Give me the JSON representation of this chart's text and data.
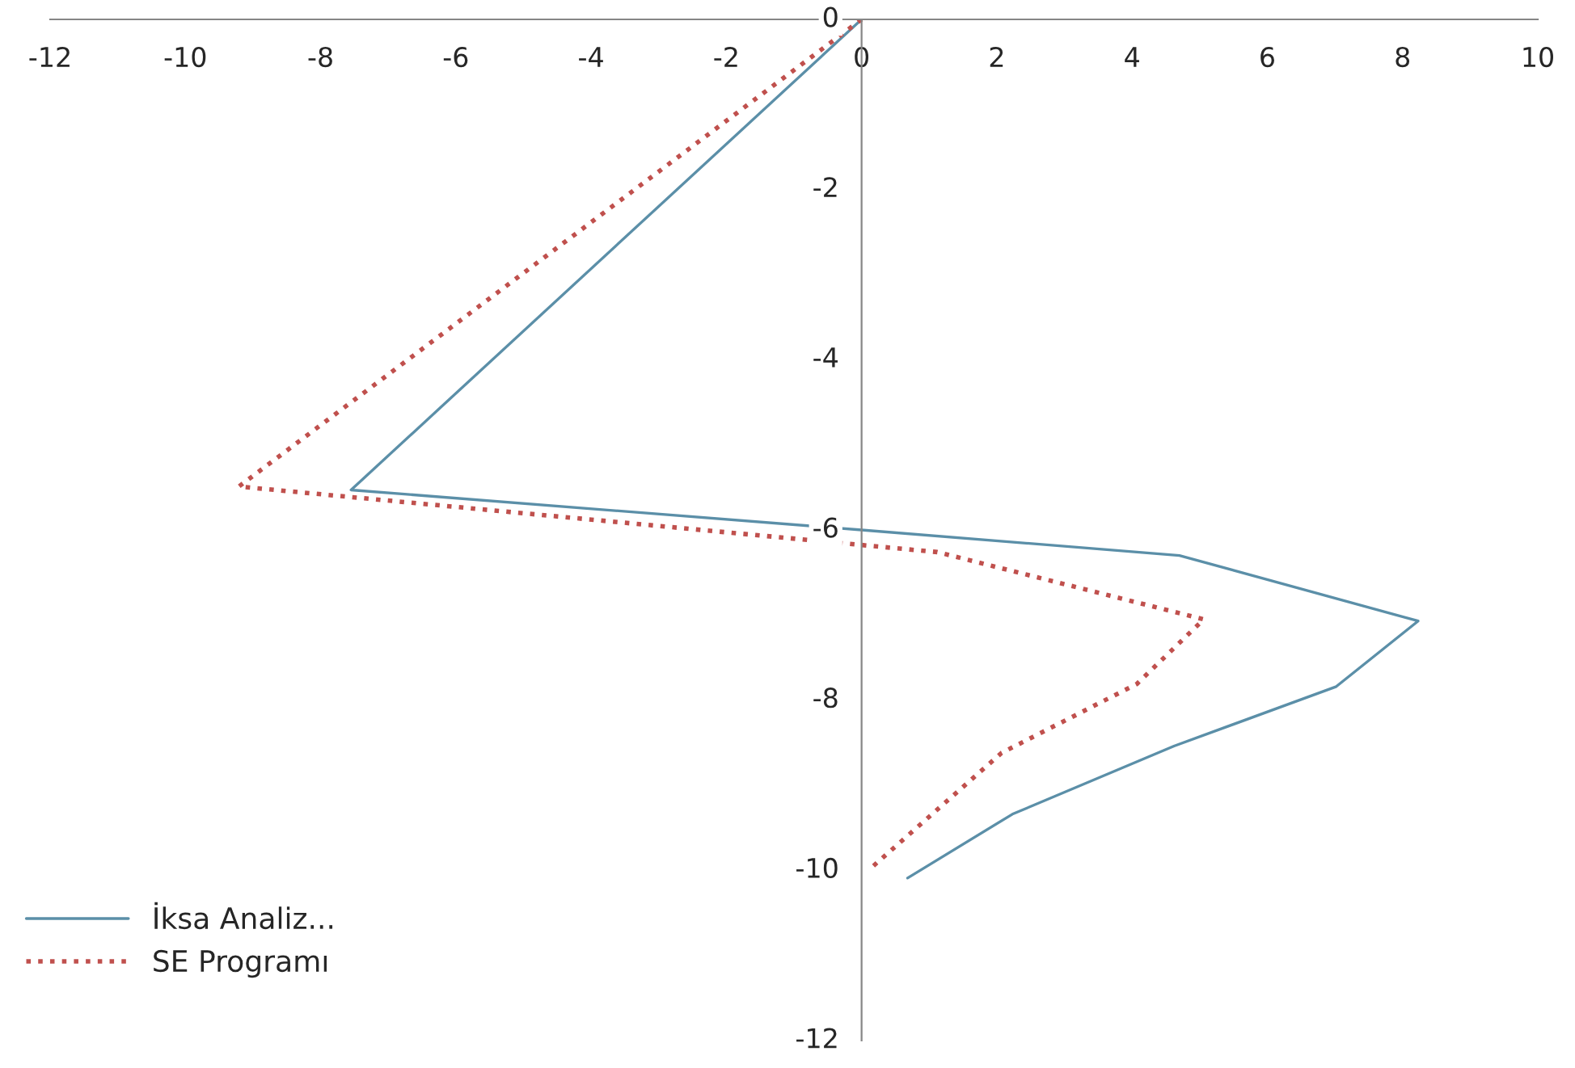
{
  "chart_data": {
    "type": "line",
    "series": [
      {
        "name": "İksa Analiz...",
        "color": "#5b8fa8",
        "line_style": "solid",
        "x": [
          0,
          -7.55,
          0,
          4.7,
          8.23,
          7.02,
          4.62,
          2.23,
          0.68
        ],
        "values": [
          0,
          -5.53,
          -6.0,
          -6.3,
          -7.07,
          -7.84,
          -8.54,
          -9.34,
          -10.09
        ]
      },
      {
        "name": "SE Programı",
        "color": "#c0504d",
        "line_style": "dotted",
        "x": [
          0,
          -9.21,
          1.12,
          5.06,
          4.07,
          2.07,
          0.1
        ],
        "values": [
          0,
          -5.49,
          -6.26,
          -7.05,
          -7.81,
          -8.62,
          -10.0
        ]
      }
    ],
    "xlim": [
      -12,
      10
    ],
    "xticks": [
      -12,
      -10,
      -8,
      -6,
      -4,
      -2,
      0,
      2,
      4,
      6,
      8,
      10
    ],
    "ylim": [
      -12,
      0
    ],
    "yticks": [
      -12,
      -10,
      -8,
      -6,
      -4,
      -2,
      0
    ],
    "grid": false,
    "legend": "bottom left",
    "marker": "none"
  }
}
